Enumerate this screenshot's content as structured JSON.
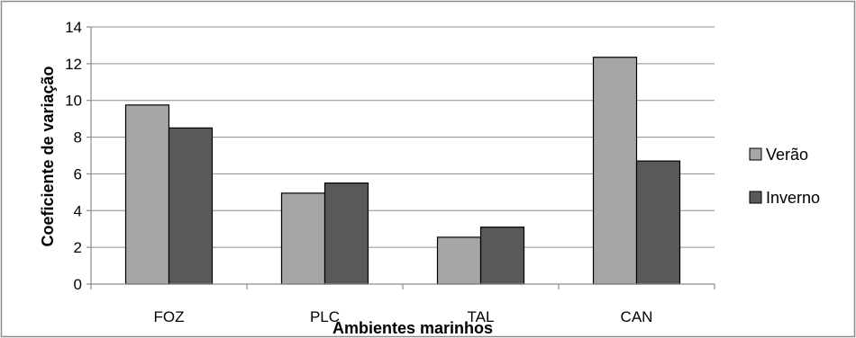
{
  "chart_data": {
    "type": "bar",
    "title": "",
    "xlabel": "Ambientes marinhos",
    "ylabel": "Coeficiente de variação",
    "categories": [
      "FOZ",
      "PLC",
      "TAL",
      "CAN"
    ],
    "series": [
      {
        "name": "Verão",
        "values": [
          9.75,
          4.95,
          2.55,
          12.35
        ],
        "color": "#a6a6a6"
      },
      {
        "name": "Inverno",
        "values": [
          8.5,
          5.5,
          3.1,
          6.7
        ],
        "color": "#595959"
      }
    ],
    "ylim": [
      0,
      14
    ],
    "yticks": [
      0,
      2,
      4,
      6,
      8,
      10,
      12,
      14
    ],
    "grid": true,
    "legend_position": "right"
  }
}
